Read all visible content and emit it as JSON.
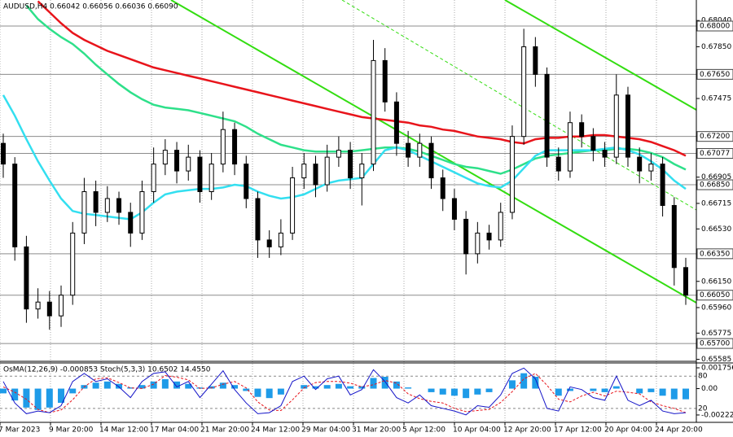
{
  "chart_data": {
    "type": "candlestick",
    "title": "AUDUSD,H4 0.66042 0.66056 0.66036 0.66090",
    "open": [
      0.6715,
      0.67,
      0.664,
      0.6595,
      0.66,
      0.659,
      0.6605,
      0.665,
      0.668,
      0.6665,
      0.6675,
      0.6665,
      0.665,
      0.668,
      0.67,
      0.671,
      0.6695,
      0.6705,
      0.668,
      0.67,
      0.6725,
      0.67,
      0.6675,
      0.6645,
      0.664,
      0.665,
      0.669,
      0.67,
      0.6685,
      0.6705,
      0.671,
      0.669,
      0.67,
      0.6775,
      0.6745,
      0.6715,
      0.6705,
      0.6715,
      0.669,
      0.6675,
      0.666,
      0.6635,
      0.665,
      0.6645,
      0.6665,
      0.672,
      0.6785,
      0.6765,
      0.6705,
      0.6695,
      0.673,
      0.672,
      0.671,
      0.6705,
      0.675,
      0.6705,
      0.6695,
      0.67,
      0.667,
      0.6625
    ],
    "high": [
      0.6722,
      0.6705,
      0.6648,
      0.661,
      0.6608,
      0.6612,
      0.6658,
      0.669,
      0.6688,
      0.6684,
      0.668,
      0.6672,
      0.6688,
      0.6712,
      0.6718,
      0.6716,
      0.6714,
      0.671,
      0.6708,
      0.6738,
      0.673,
      0.6706,
      0.668,
      0.6652,
      0.666,
      0.6698,
      0.6708,
      0.6706,
      0.6714,
      0.672,
      0.6716,
      0.6708,
      0.679,
      0.6784,
      0.6752,
      0.6724,
      0.6722,
      0.672,
      0.6696,
      0.6682,
      0.6666,
      0.6658,
      0.6656,
      0.6672,
      0.6728,
      0.6798,
      0.6792,
      0.677,
      0.6712,
      0.6738,
      0.6736,
      0.6726,
      0.6716,
      0.6765,
      0.6756,
      0.6712,
      0.6708,
      0.6705,
      0.6676,
      0.6632
    ],
    "low": [
      0.669,
      0.663,
      0.6585,
      0.6588,
      0.658,
      0.6582,
      0.6598,
      0.6642,
      0.6655,
      0.6658,
      0.6656,
      0.664,
      0.6645,
      0.6672,
      0.6692,
      0.6686,
      0.6688,
      0.6672,
      0.6674,
      0.6694,
      0.6692,
      0.6668,
      0.6632,
      0.6632,
      0.6634,
      0.6645,
      0.6682,
      0.6676,
      0.668,
      0.6698,
      0.6682,
      0.667,
      0.6695,
      0.6738,
      0.6706,
      0.6698,
      0.6698,
      0.6682,
      0.6666,
      0.6652,
      0.662,
      0.6628,
      0.6638,
      0.664,
      0.666,
      0.6714,
      0.6756,
      0.6698,
      0.6688,
      0.669,
      0.6712,
      0.6702,
      0.6698,
      0.67,
      0.6698,
      0.6686,
      0.6688,
      0.6662,
      0.6612,
      0.6598
    ],
    "close": [
      0.67,
      0.664,
      0.6595,
      0.66,
      0.659,
      0.6605,
      0.665,
      0.668,
      0.6665,
      0.6675,
      0.6665,
      0.665,
      0.668,
      0.67,
      0.671,
      0.6695,
      0.6705,
      0.668,
      0.67,
      0.6725,
      0.67,
      0.6675,
      0.6645,
      0.664,
      0.665,
      0.669,
      0.67,
      0.6685,
      0.6705,
      0.671,
      0.669,
      0.67,
      0.6775,
      0.6745,
      0.6715,
      0.6705,
      0.6715,
      0.669,
      0.6675,
      0.666,
      0.6635,
      0.665,
      0.6645,
      0.6665,
      0.672,
      0.6785,
      0.6765,
      0.6705,
      0.6695,
      0.673,
      0.672,
      0.671,
      0.6705,
      0.675,
      0.6705,
      0.6695,
      0.67,
      0.667,
      0.6625,
      0.6605
    ],
    "candle_color": "#000000",
    "moving_averages": [
      {
        "color": "#e8141b",
        "values": [
          null,
          null,
          null,
          0.6818,
          0.681,
          0.6802,
          0.6795,
          0.679,
          0.6786,
          0.6782,
          0.6779,
          0.6776,
          0.6773,
          0.677,
          0.6768,
          0.6766,
          0.6764,
          0.6762,
          0.676,
          0.6758,
          0.6756,
          0.6754,
          0.6752,
          0.675,
          0.6748,
          0.6746,
          0.6744,
          0.6742,
          0.674,
          0.6738,
          0.6736,
          0.6734,
          0.6733,
          0.6732,
          0.6731,
          0.673,
          0.6728,
          0.6727,
          0.6725,
          0.6724,
          0.6722,
          0.672,
          0.6719,
          0.6718,
          0.6716,
          0.6715,
          0.6718,
          0.6719,
          0.6719,
          0.672,
          0.672,
          0.6721,
          0.6721,
          0.672,
          0.6719,
          0.6718,
          0.6716,
          0.6713,
          0.671,
          0.6706
        ]
      },
      {
        "color": "#2ee08a",
        "values": [
          null,
          null,
          0.6815,
          0.6805,
          0.6798,
          0.6792,
          0.6787,
          0.678,
          0.6772,
          0.6765,
          0.6758,
          0.6752,
          0.6747,
          0.6743,
          0.6741,
          0.674,
          0.6739,
          0.6737,
          0.6735,
          0.6733,
          0.6731,
          0.6727,
          0.6722,
          0.6718,
          0.6714,
          0.6712,
          0.671,
          0.6709,
          0.6709,
          0.6709,
          0.6709,
          0.671,
          0.6711,
          0.6712,
          0.6712,
          0.6711,
          0.6709,
          0.6706,
          0.6703,
          0.67,
          0.6698,
          0.6697,
          0.6695,
          0.6693,
          0.6696,
          0.67,
          0.6704,
          0.6706,
          0.6707,
          0.6708,
          0.6709,
          0.671,
          0.671,
          0.6711,
          0.6711,
          0.671,
          0.6708,
          0.6705,
          0.67,
          0.6696
        ]
      },
      {
        "color": "#33dff0",
        "values": [
          0.675,
          0.6735,
          0.6718,
          0.6702,
          0.6688,
          0.6675,
          0.6666,
          0.6664,
          0.6663,
          0.6662,
          0.6661,
          0.666,
          0.6665,
          0.6672,
          0.6678,
          0.668,
          0.6681,
          0.6682,
          0.6682,
          0.6683,
          0.6685,
          0.6684,
          0.668,
          0.6677,
          0.6675,
          0.6676,
          0.6678,
          0.6682,
          0.6686,
          0.6688,
          0.6689,
          0.669,
          0.67,
          0.671,
          0.6712,
          0.671,
          0.6706,
          0.6702,
          0.6698,
          0.6694,
          0.669,
          0.6686,
          0.6684,
          0.6683,
          0.6688,
          0.6697,
          0.6706,
          0.671,
          0.671,
          0.671,
          0.671,
          0.671,
          0.6711,
          0.6712,
          0.671,
          0.6707,
          0.6702,
          0.6696,
          0.6688,
          0.6682
        ]
      }
    ],
    "levels": [
      {
        "value": 0.68,
        "label": "0.68000"
      },
      {
        "value": 0.6765,
        "label": "0.67650"
      },
      {
        "value": 0.672,
        "label": "0.67200"
      },
      {
        "value": 0.67077,
        "label": "0.67077"
      },
      {
        "value": 0.6685,
        "label": "0.66850"
      },
      {
        "value": 0.6635,
        "label": "0.66350"
      },
      {
        "value": 0.6605,
        "label": "0.66050"
      },
      {
        "value": 0.657,
        "label": "0.65700"
      }
    ],
    "ylim": [
      0.655825,
      0.681887
    ],
    "yticks": [
      {
        "value": 0.6804,
        "label": "0.68040"
      },
      {
        "value": 0.6785,
        "label": "0.67850"
      },
      {
        "value": 0.67475,
        "label": "0.67475"
      },
      {
        "value": 0.66905,
        "label": "0.66905"
      },
      {
        "value": 0.66715,
        "label": "0.66715"
      },
      {
        "value": 0.6653,
        "label": "0.66530"
      },
      {
        "value": 0.6615,
        "label": "0.66150"
      },
      {
        "value": 0.6596,
        "label": "0.65960"
      },
      {
        "value": 0.65775,
        "label": "0.65775"
      },
      {
        "value": 0.65585,
        "label": "0.65585"
      }
    ],
    "x_labels": [
      "7 Mar 2023",
      "9 Mar 20:00",
      "14 Mar 12:00",
      "17 Mar 04:00",
      "21 Mar 20:00",
      "24 Mar 12:00",
      "29 Mar 04:00",
      "31 Mar 20:00",
      "5 Apr 12:00",
      "10 Apr 04:00",
      "12 Apr 20:00",
      "17 Apr 12:00",
      "20 Apr 04:00",
      "24 Apr 20:00"
    ],
    "subchart": {
      "type": "osma_stoch",
      "title": "OsMA(12,26,9) -0.000853 Stoch(5,3,3) 10.6502 14.4550",
      "osma": {
        "color": "#1e9be8",
        "values": [
          -0.0004,
          -0.001,
          -0.0016,
          -0.0018,
          -0.0016,
          -0.0012,
          -0.0004,
          0.0003,
          0.0005,
          0.0006,
          0.0004,
          0.0001,
          0.0003,
          0.0006,
          0.0008,
          0.0006,
          0.0004,
          0.0001,
          0.0002,
          0.0005,
          0.0003,
          -0.0002,
          -0.0007,
          -0.0008,
          -0.0005,
          0.0,
          0.0003,
          0.0002,
          0.0003,
          0.0004,
          0.0002,
          0.0002,
          0.0009,
          0.001,
          0.0006,
          0.0001,
          0.0,
          -0.0003,
          -0.0005,
          -0.0006,
          -0.0008,
          -0.0005,
          -0.0003,
          0.0,
          0.0007,
          0.0013,
          0.001,
          0.0,
          -0.0006,
          -0.0002,
          0.0,
          -0.0002,
          -0.0003,
          0.0002,
          0.0,
          -0.0004,
          -0.0003,
          -0.0006,
          -0.0009,
          -0.0009
        ]
      },
      "stoch": {
        "color": "#1414c8",
        "values": [
          70,
          30,
          10,
          15,
          12,
          25,
          70,
          85,
          70,
          75,
          60,
          40,
          70,
          85,
          88,
          60,
          70,
          40,
          65,
          90,
          55,
          30,
          10,
          12,
          25,
          70,
          80,
          55,
          75,
          80,
          45,
          55,
          92,
          70,
          40,
          30,
          45,
          25,
          20,
          15,
          8,
          25,
          22,
          45,
          85,
          95,
          75,
          20,
          15,
          60,
          55,
          40,
          35,
          80,
          35,
          25,
          35,
          15,
          10,
          12
        ]
      },
      "signal": {
        "color": "#e8141b",
        "values": [
          60,
          50,
          37,
          18,
          12,
          17,
          36,
          60,
          75,
          77,
          68,
          58,
          57,
          65,
          81,
          78,
          73,
          57,
          58,
          65,
          70,
          58,
          32,
          17,
          16,
          36,
          58,
          68,
          70,
          70,
          67,
          60,
          64,
          72,
          67,
          47,
          38,
          33,
          30,
          20,
          14,
          16,
          18,
          31,
          51,
          75,
          85,
          63,
          37,
          32,
          43,
          50,
          43,
          52,
          50,
          47,
          32,
          25,
          20,
          12
        ]
      },
      "osma_lim": [
        -0.00285,
        0.0021
      ],
      "osma_ticks": [
        0.0017562,
        {
          "value": 0,
          "label": "0.00"
        },
        -0.0022276
      ],
      "stoch_lim": [
        -6,
        103
      ],
      "stoch_ticks": [
        80,
        20
      ]
    }
  }
}
